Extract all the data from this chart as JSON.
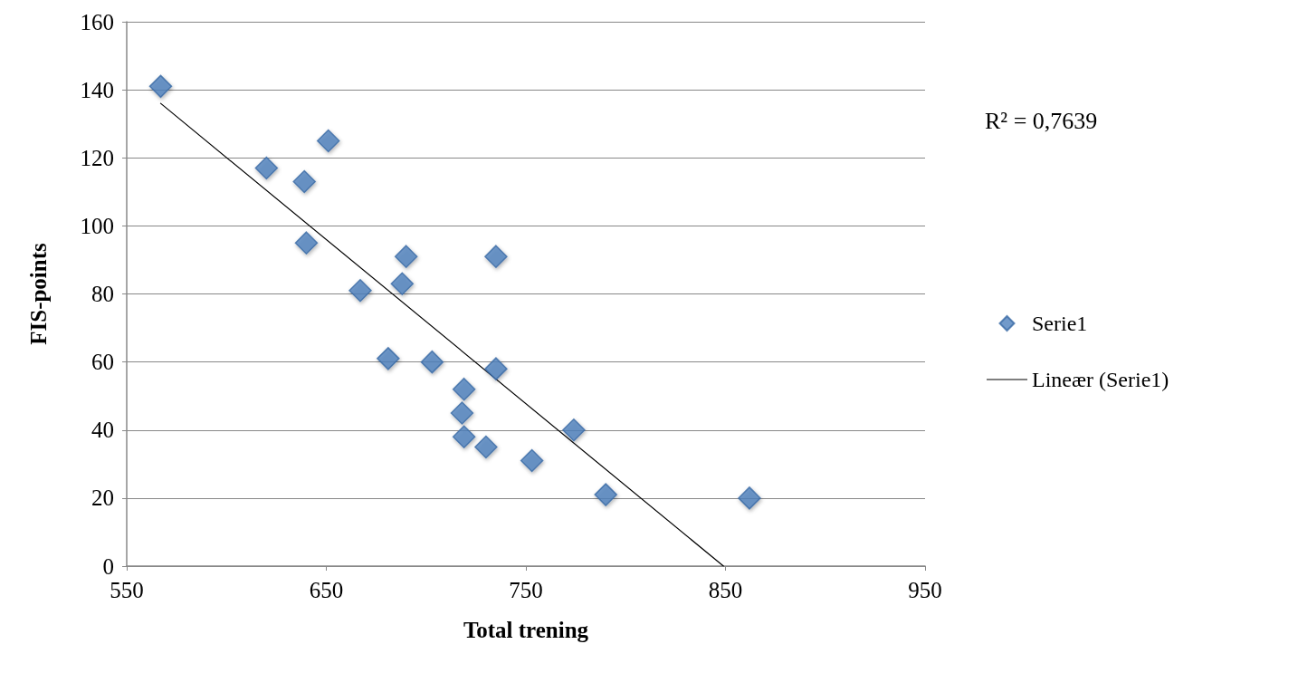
{
  "chart_data": {
    "type": "scatter",
    "xlabel": "Total trening",
    "ylabel": "FIS-points",
    "annotations": [
      "R² = 0,7639"
    ],
    "series": [
      {
        "name": "Serie1",
        "color": "#4f81bd",
        "marker": "diamond",
        "x": [
          567,
          620,
          639,
          651,
          640,
          667,
          688,
          690,
          681,
          703,
          719,
          718,
          719,
          730,
          753,
          774,
          790,
          862,
          735,
          735
        ],
        "values": [
          141,
          117,
          113,
          125,
          95,
          81,
          83,
          91,
          61,
          60,
          52,
          45,
          38,
          35,
          31,
          40,
          21,
          20,
          58,
          91
        ]
      },
      {
        "name": "Lineær (Serie1)",
        "type": "line",
        "color": "#000000",
        "marker": "none",
        "line_style": "solid",
        "x": [
          567,
          849
        ],
        "values": [
          136,
          0
        ]
      }
    ],
    "xlim": [
      550,
      950
    ],
    "xticks": [
      550,
      650,
      750,
      850,
      950
    ],
    "ylim": [
      0,
      160
    ],
    "yticks": [
      0,
      20,
      40,
      60,
      80,
      100,
      120,
      140,
      160
    ],
    "grid": "y",
    "legend": "right"
  }
}
